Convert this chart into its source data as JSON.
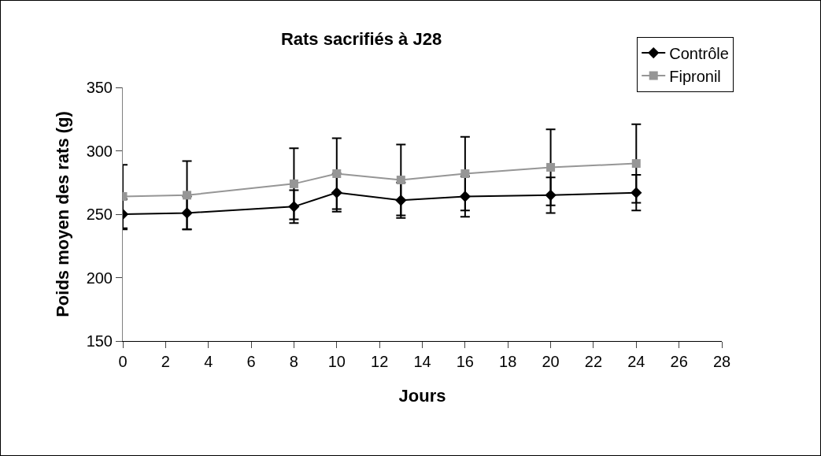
{
  "chart_data": {
    "type": "line",
    "title": "Rats sacrifiés à J28",
    "xlabel": "Jours",
    "ylabel": "Poids moyen des rats (g)",
    "x": [
      0,
      3,
      8,
      10,
      13,
      16,
      20,
      24
    ],
    "series": [
      {
        "name": "Contrôle",
        "color": "#000000",
        "marker": "diamond",
        "values": [
          250,
          251,
          256,
          267,
          261,
          264,
          265,
          267
        ],
        "errors": [
          12,
          13,
          13,
          15,
          14,
          16,
          14,
          14
        ]
      },
      {
        "name": "Fipronil",
        "color": "#969696",
        "marker": "square",
        "values": [
          264,
          265,
          274,
          282,
          277,
          282,
          287,
          290
        ],
        "errors": [
          25,
          27,
          28,
          28,
          28,
          29,
          30,
          31
        ]
      }
    ],
    "xlim": [
      0,
      28
    ],
    "xticks": [
      0,
      2,
      4,
      6,
      8,
      10,
      12,
      14,
      16,
      18,
      20,
      22,
      24,
      26,
      28
    ],
    "ylim": [
      150,
      350
    ],
    "yticks": [
      150,
      200,
      250,
      300,
      350
    ],
    "grid": false,
    "legend": "top right",
    "line_style": "solid"
  }
}
